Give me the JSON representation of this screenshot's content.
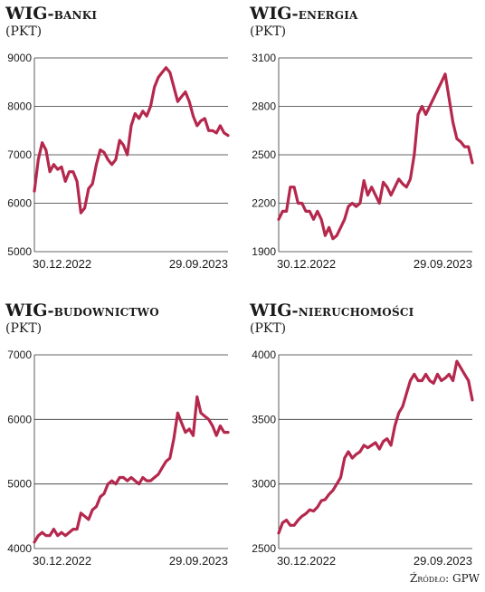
{
  "chart_data": [
    {
      "type": "line",
      "title": "WIG-banki",
      "title_parts": [
        "WIG",
        "-banki"
      ],
      "unit_label": "(PKT)",
      "ylim": [
        5000,
        9000
      ],
      "yticks": [
        9000,
        8000,
        7000,
        6000,
        5000
      ],
      "xtick_labels": [
        "30.12.2022",
        "29.09.2023"
      ],
      "grid": true,
      "line_color": "#b5284d",
      "x": [
        0,
        0.02,
        0.04,
        0.06,
        0.08,
        0.1,
        0.12,
        0.14,
        0.16,
        0.18,
        0.2,
        0.22,
        0.24,
        0.26,
        0.28,
        0.3,
        0.32,
        0.34,
        0.36,
        0.38,
        0.4,
        0.42,
        0.44,
        0.46,
        0.48,
        0.5,
        0.52,
        0.54,
        0.56,
        0.58,
        0.6,
        0.62,
        0.64,
        0.66,
        0.68,
        0.7,
        0.72,
        0.74,
        0.76,
        0.78,
        0.8,
        0.82,
        0.84,
        0.86,
        0.88,
        0.9,
        0.92,
        0.94,
        0.96,
        0.98,
        1.0
      ],
      "values": [
        6250,
        6900,
        7250,
        7100,
        6650,
        6800,
        6700,
        6750,
        6450,
        6650,
        6650,
        6450,
        5800,
        5900,
        6300,
        6400,
        6800,
        7100,
        7050,
        6900,
        6800,
        6900,
        7300,
        7200,
        7000,
        7600,
        7850,
        7750,
        7900,
        7800,
        8000,
        8400,
        8600,
        8700,
        8800,
        8700,
        8400,
        8100,
        8200,
        8300,
        8100,
        7800,
        7600,
        7700,
        7750,
        7500,
        7500,
        7450,
        7600,
        7450,
        7400
      ]
    },
    {
      "type": "line",
      "title": "WIG-energia",
      "title_parts": [
        "WIG",
        "-energia"
      ],
      "unit_label": "(PKT)",
      "ylim": [
        1900,
        3100
      ],
      "yticks": [
        3100,
        2800,
        2500,
        2200,
        1900
      ],
      "xtick_labels": [
        "30.12.2022",
        "29.09.2023"
      ],
      "grid": true,
      "line_color": "#b5284d",
      "x": [
        0,
        0.02,
        0.04,
        0.06,
        0.08,
        0.1,
        0.12,
        0.14,
        0.16,
        0.18,
        0.2,
        0.22,
        0.24,
        0.26,
        0.28,
        0.3,
        0.32,
        0.34,
        0.36,
        0.38,
        0.4,
        0.42,
        0.44,
        0.46,
        0.48,
        0.5,
        0.52,
        0.54,
        0.56,
        0.58,
        0.6,
        0.62,
        0.64,
        0.66,
        0.68,
        0.7,
        0.72,
        0.74,
        0.76,
        0.78,
        0.8,
        0.82,
        0.84,
        0.86,
        0.88,
        0.9,
        0.92,
        0.94,
        0.96,
        0.98,
        1.0
      ],
      "values": [
        2100,
        2150,
        2150,
        2300,
        2300,
        2200,
        2200,
        2150,
        2150,
        2100,
        2150,
        2100,
        2000,
        2050,
        1980,
        2000,
        2050,
        2100,
        2180,
        2200,
        2180,
        2200,
        2340,
        2250,
        2300,
        2250,
        2200,
        2330,
        2300,
        2250,
        2300,
        2350,
        2320,
        2300,
        2350,
        2500,
        2750,
        2800,
        2750,
        2800,
        2850,
        2900,
        2950,
        3000,
        2850,
        2700,
        2600,
        2580,
        2550,
        2550,
        2450
      ]
    },
    {
      "type": "line",
      "title": "WIG-budownictwo",
      "title_parts": [
        "WIG",
        "-budownictwo"
      ],
      "unit_label": "(PKT)",
      "ylim": [
        4000,
        7000
      ],
      "yticks": [
        7000,
        6000,
        5000,
        4000
      ],
      "xtick_labels": [
        "30.12.2022",
        "29.09.2023"
      ],
      "grid": true,
      "line_color": "#b5284d",
      "x": [
        0,
        0.02,
        0.04,
        0.06,
        0.08,
        0.1,
        0.12,
        0.14,
        0.16,
        0.18,
        0.2,
        0.22,
        0.24,
        0.26,
        0.28,
        0.3,
        0.32,
        0.34,
        0.36,
        0.38,
        0.4,
        0.42,
        0.44,
        0.46,
        0.48,
        0.5,
        0.52,
        0.54,
        0.56,
        0.58,
        0.6,
        0.62,
        0.64,
        0.66,
        0.68,
        0.7,
        0.72,
        0.74,
        0.76,
        0.78,
        0.8,
        0.82,
        0.84,
        0.86,
        0.88,
        0.9,
        0.92,
        0.94,
        0.96,
        0.98,
        1.0
      ],
      "values": [
        4100,
        4200,
        4250,
        4200,
        4200,
        4300,
        4200,
        4250,
        4200,
        4250,
        4300,
        4300,
        4550,
        4500,
        4450,
        4600,
        4650,
        4800,
        4850,
        5000,
        5050,
        5000,
        5100,
        5100,
        5050,
        5100,
        5050,
        5000,
        5100,
        5050,
        5050,
        5100,
        5150,
        5250,
        5350,
        5400,
        5700,
        6100,
        5950,
        5800,
        5850,
        5750,
        6350,
        6100,
        6050,
        6000,
        5900,
        5750,
        5900,
        5800,
        5800
      ]
    },
    {
      "type": "line",
      "title": "WIG-nieruchomości",
      "title_parts": [
        "WIG",
        "-nieruchomości"
      ],
      "unit_label": "(PKT)",
      "ylim": [
        2500,
        4000
      ],
      "yticks": [
        4000,
        3500,
        3000,
        2500
      ],
      "xtick_labels": [
        "30.12.2022",
        "29.09.2023"
      ],
      "grid": true,
      "line_color": "#b5284d",
      "x": [
        0,
        0.02,
        0.04,
        0.06,
        0.08,
        0.1,
        0.12,
        0.14,
        0.16,
        0.18,
        0.2,
        0.22,
        0.24,
        0.26,
        0.28,
        0.3,
        0.32,
        0.34,
        0.36,
        0.38,
        0.4,
        0.42,
        0.44,
        0.46,
        0.48,
        0.5,
        0.52,
        0.54,
        0.56,
        0.58,
        0.6,
        0.62,
        0.64,
        0.66,
        0.68,
        0.7,
        0.72,
        0.74,
        0.76,
        0.78,
        0.8,
        0.82,
        0.84,
        0.86,
        0.88,
        0.9,
        0.92,
        0.94,
        0.96,
        0.98,
        1.0
      ],
      "values": [
        2620,
        2700,
        2720,
        2680,
        2680,
        2720,
        2750,
        2770,
        2800,
        2790,
        2820,
        2870,
        2880,
        2920,
        2950,
        3000,
        3050,
        3200,
        3250,
        3200,
        3230,
        3250,
        3300,
        3280,
        3300,
        3320,
        3270,
        3330,
        3350,
        3300,
        3450,
        3550,
        3600,
        3700,
        3800,
        3850,
        3800,
        3800,
        3850,
        3800,
        3780,
        3850,
        3800,
        3820,
        3850,
        3800,
        3950,
        3900,
        3850,
        3800,
        3650
      ]
    }
  ],
  "source": "Źródło: GPW"
}
